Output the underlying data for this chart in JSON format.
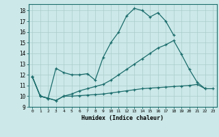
{
  "xlabel": "Humidex (Indice chaleur)",
  "background_color": "#cce8e8",
  "grid_color": "#aacccc",
  "line_color": "#1a6b6b",
  "xlim": [
    -0.5,
    23.5
  ],
  "ylim": [
    9.0,
    18.6
  ],
  "yticks": [
    9,
    10,
    11,
    12,
    13,
    14,
    15,
    16,
    17,
    18
  ],
  "xticks": [
    0,
    1,
    2,
    3,
    4,
    5,
    6,
    7,
    8,
    9,
    10,
    11,
    12,
    13,
    14,
    15,
    16,
    17,
    18,
    19,
    20,
    21,
    22,
    23
  ],
  "series": [
    {
      "x": [
        0,
        1,
        2,
        3,
        4,
        5,
        6,
        7,
        8,
        9,
        10,
        11,
        12,
        13,
        14,
        15,
        16,
        17,
        18
      ],
      "y": [
        11.8,
        10.0,
        9.8,
        12.6,
        12.2,
        12.0,
        12.0,
        12.1,
        11.5,
        13.6,
        15.0,
        16.0,
        17.5,
        18.2,
        18.0,
        17.4,
        17.8,
        17.0,
        15.7
      ]
    },
    {
      "x": [
        0,
        1,
        2,
        3,
        4,
        5,
        6,
        7,
        8,
        9,
        10,
        11,
        12,
        13,
        14,
        15,
        16,
        17,
        18,
        19,
        20,
        21,
        22
      ],
      "y": [
        11.8,
        10.0,
        9.8,
        9.6,
        10.0,
        10.2,
        10.5,
        10.7,
        10.9,
        11.1,
        11.5,
        12.0,
        12.5,
        13.0,
        13.5,
        14.0,
        14.5,
        14.8,
        15.2,
        13.9,
        12.5,
        11.3,
        10.7
      ]
    },
    {
      "x": [
        0,
        1,
        2,
        3,
        4,
        5,
        6,
        7,
        8,
        9,
        10,
        11,
        12,
        13,
        14,
        15,
        16,
        17,
        18,
        19,
        20,
        21,
        22,
        23
      ],
      "y": [
        11.8,
        10.0,
        9.8,
        9.6,
        10.0,
        10.0,
        10.05,
        10.1,
        10.15,
        10.2,
        10.3,
        10.4,
        10.5,
        10.6,
        10.7,
        10.75,
        10.8,
        10.85,
        10.9,
        10.95,
        11.0,
        11.1,
        10.7,
        10.7
      ]
    }
  ]
}
